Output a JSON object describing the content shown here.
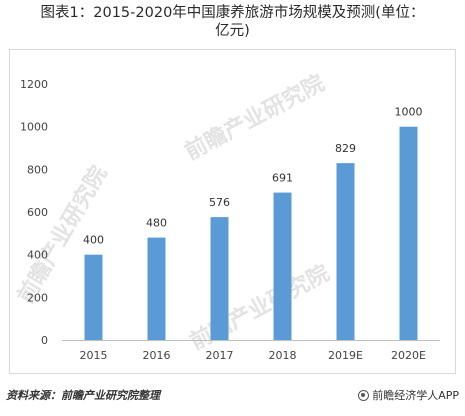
{
  "title": {
    "line1": "图表1：2015-2020年中国康养旅游市场规模及预测(单位：",
    "line2": "亿元)"
  },
  "chart_data": {
    "type": "bar",
    "categories": [
      "2015",
      "2016",
      "2017",
      "2018",
      "2019E",
      "2020E"
    ],
    "values": [
      400,
      480,
      576,
      691,
      829,
      1000
    ],
    "data_labels": [
      "400",
      "480",
      "576",
      "691",
      "829",
      "1000"
    ],
    "ylim": [
      0,
      1200
    ],
    "yticks": [
      0,
      200,
      400,
      600,
      800,
      1000,
      1200
    ],
    "xlabel": "",
    "ylabel": "",
    "grid": false,
    "legend": "none",
    "bar_color": "#5b9bd5"
  },
  "footer": {
    "source": "资料来源：前瞻产业研究院整理",
    "brand": "前瞻经济学人APP"
  },
  "watermark": {
    "text": "前瞻产业研究院",
    "color": "#e3e3e3"
  }
}
